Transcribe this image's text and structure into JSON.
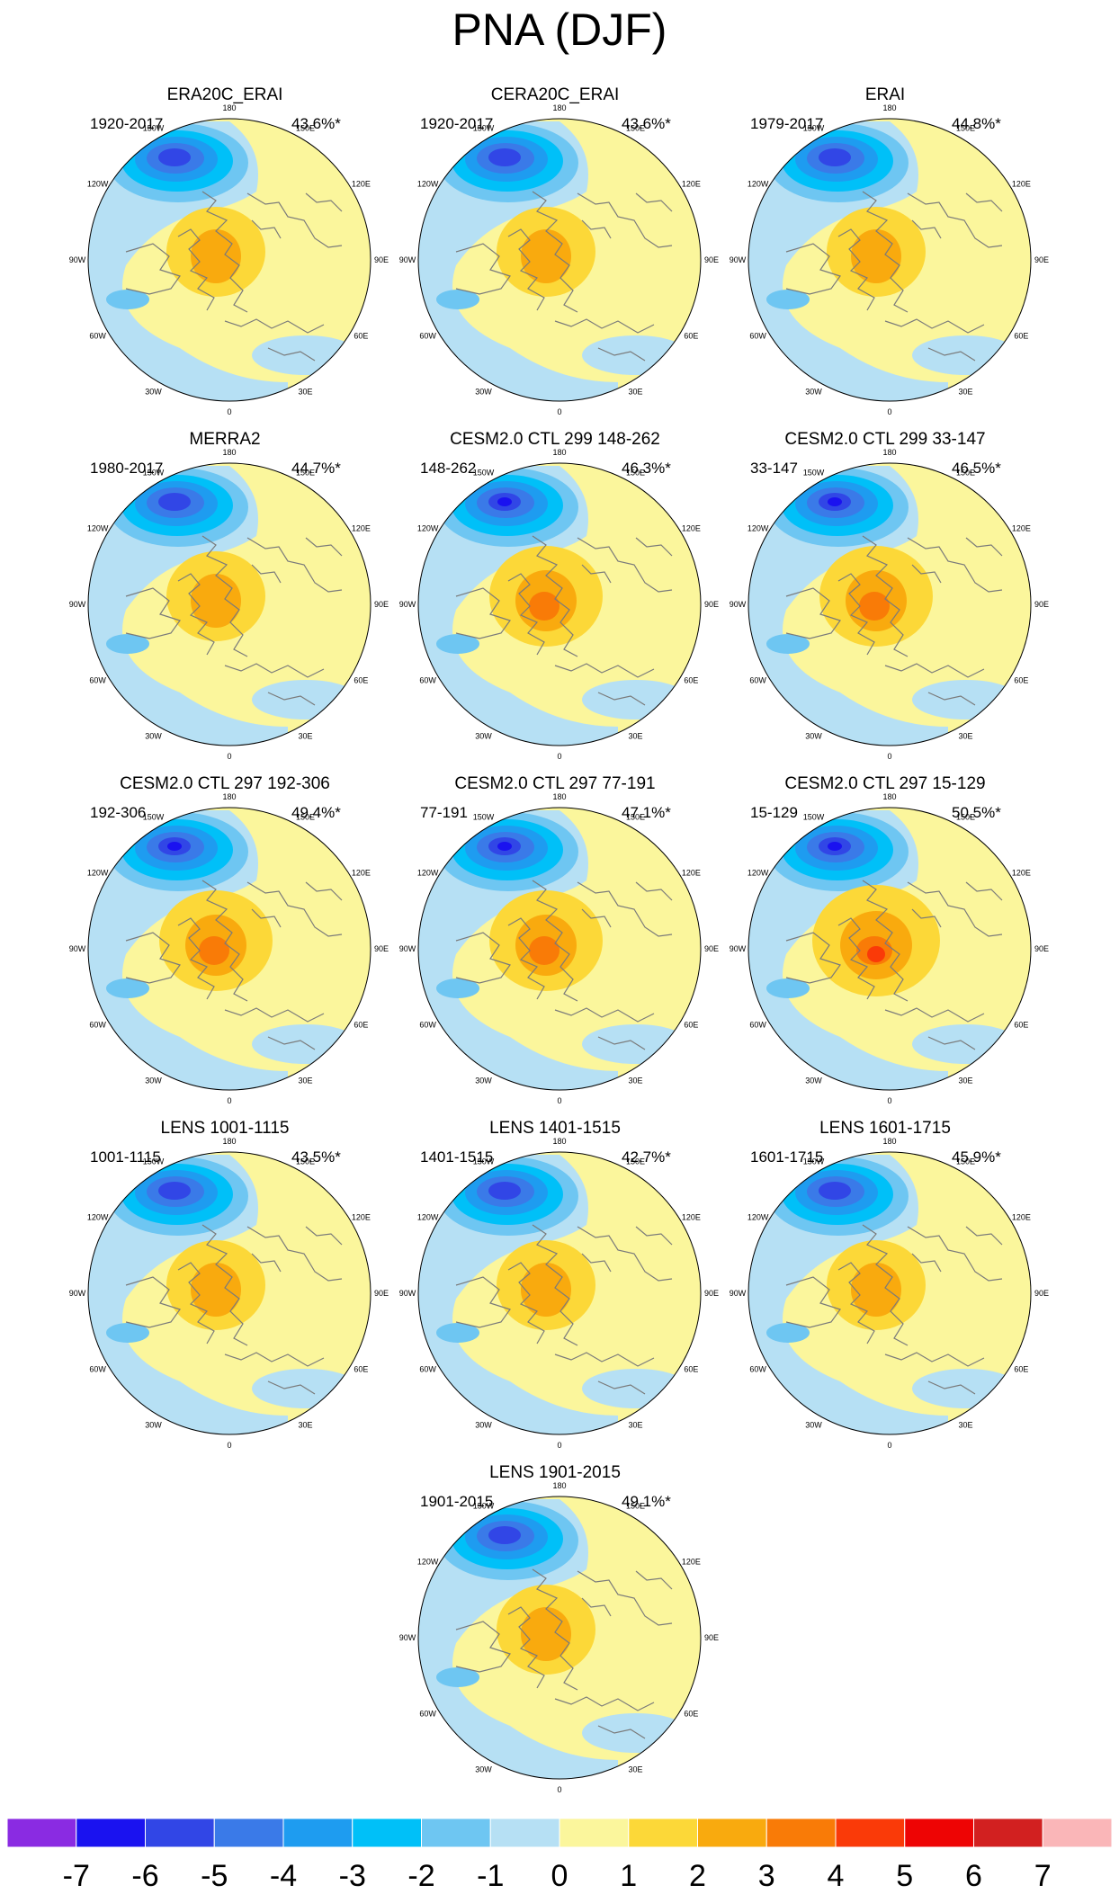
{
  "title": "PNA (DJF)",
  "longitude_labels": [
    "180",
    "150E",
    "120E",
    "90E",
    "60E",
    "30E",
    "0",
    "30W",
    "60W",
    "90W",
    "120W",
    "150W"
  ],
  "panels": [
    {
      "title": "ERA20C_ERAI",
      "period": "1920-2017",
      "variance": "43.6%*"
    },
    {
      "title": "CERA20C_ERAI",
      "period": "1920-2017",
      "variance": "43.6%*"
    },
    {
      "title": "ERAI",
      "period": "1979-2017",
      "variance": "44.8%*"
    },
    {
      "title": "MERRA2",
      "period": "1980-2017",
      "variance": "44.7%*"
    },
    {
      "title": "CESM2.0 CTL 299 148-262",
      "period": "148-262",
      "variance": "46.3%*"
    },
    {
      "title": "CESM2.0 CTL 299 33-147",
      "period": "33-147",
      "variance": "46.5%*"
    },
    {
      "title": "CESM2.0 CTL 297 192-306",
      "period": "192-306",
      "variance": "49.4%*"
    },
    {
      "title": "CESM2.0 CTL 297 77-191",
      "period": "77-191",
      "variance": "47.1%*"
    },
    {
      "title": "CESM2.0 CTL 297 15-129",
      "period": "15-129",
      "variance": "50.5%*"
    },
    {
      "title": "LENS 1001-1115",
      "period": "1001-1115",
      "variance": "43.5%*"
    },
    {
      "title": "LENS 1401-1515",
      "period": "1401-1515",
      "variance": "42.7%*"
    },
    {
      "title": "LENS 1601-1715",
      "period": "1601-1715",
      "variance": "45.9%*"
    },
    {
      "title": "LENS 1901-2015",
      "period": "1901-2015",
      "variance": "49.1%*"
    }
  ],
  "colorbar": {
    "labels": [
      "-7",
      "-6",
      "-5",
      "-4",
      "-3",
      "-2",
      "-1",
      "0",
      "1",
      "2",
      "3",
      "4",
      "5",
      "6",
      "7"
    ],
    "colors": [
      "#8a2be2",
      "#1a12f0",
      "#3146e6",
      "#3a7ae8",
      "#1e9cf0",
      "#00c0f8",
      "#6ec6f2",
      "#b6e0f4",
      "#fbf69c",
      "#fcd838",
      "#f9aa0e",
      "#f97b07",
      "#fa3a08",
      "#ee0404",
      "#d22020",
      "#fab6b8"
    ]
  }
}
